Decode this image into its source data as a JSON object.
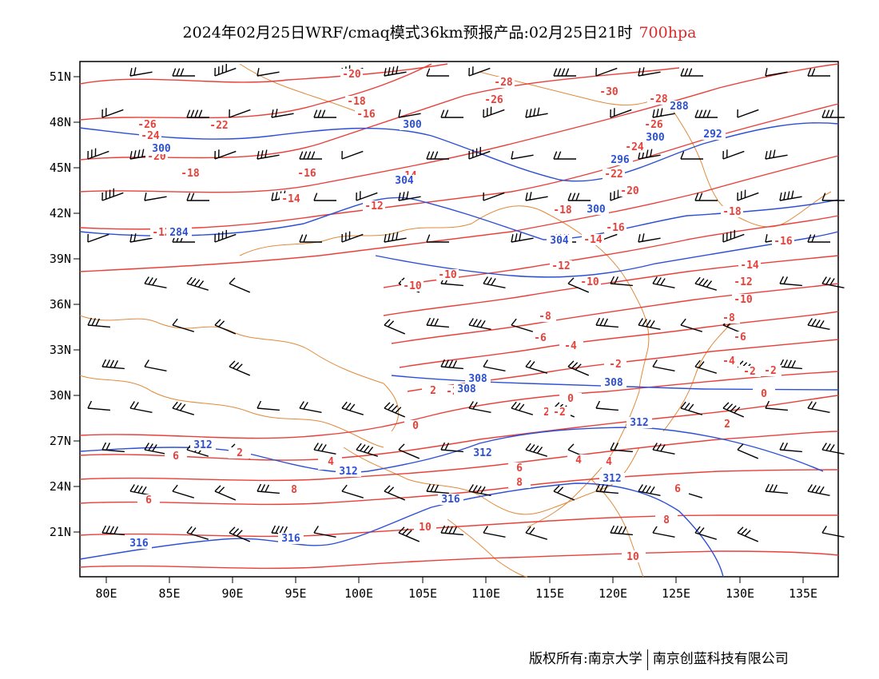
{
  "title": {
    "main": "2024年02月25日WRF/cmaq模式36km预报产品:02月25日21时",
    "level": "700hpa",
    "level_color": "#e0292b"
  },
  "footer": {
    "copyright": "版权所有:南京大学",
    "company": "南京创蓝科技有限公司"
  },
  "map": {
    "lon_labels": [
      "80E",
      "85E",
      "90E",
      "95E",
      "100E",
      "105E",
      "110E",
      "115E",
      "120E",
      "125E",
      "130E",
      "135E"
    ],
    "lat_labels": [
      "51N",
      "48N",
      "45N",
      "42N",
      "39N",
      "36N",
      "33N",
      "30N",
      "27N",
      "24N",
      "21N"
    ],
    "colors": {
      "temperature": "#e8403a",
      "height": "#2c4fd6",
      "border": "#e08a3a",
      "wind": "#000000"
    },
    "temperature_labels": [
      "-20",
      "-18",
      "-16",
      "-26",
      "-24",
      "-22",
      "-20",
      "-18",
      "-16",
      "-14",
      "-12",
      "-14",
      "-12",
      "-10",
      "-10",
      "-28",
      "-26",
      "-30",
      "-28",
      "-26",
      "-24",
      "-22",
      "-20",
      "-18",
      "-16",
      "-14",
      "-12",
      "-10",
      "-18",
      "-16",
      "-14",
      "-12",
      "-10",
      "-8",
      "-6",
      "-4",
      "-2",
      "0",
      "-2",
      "0",
      "2",
      "4",
      "6",
      "8",
      "10",
      "-8",
      "-6",
      "-4",
      "-2",
      "2",
      "4",
      "6",
      "8",
      "10",
      "2",
      "4",
      "6",
      "8",
      "-2",
      "0",
      "2",
      "-6",
      "-4",
      "-2",
      "2",
      "4",
      "6",
      "8",
      "10"
    ],
    "height_labels": [
      "300",
      "300",
      "304",
      "300",
      "300",
      "296",
      "292",
      "288",
      "284",
      "304",
      "308",
      "308",
      "312",
      "312",
      "312",
      "312",
      "316",
      "316",
      "316",
      "308",
      "312"
    ]
  }
}
